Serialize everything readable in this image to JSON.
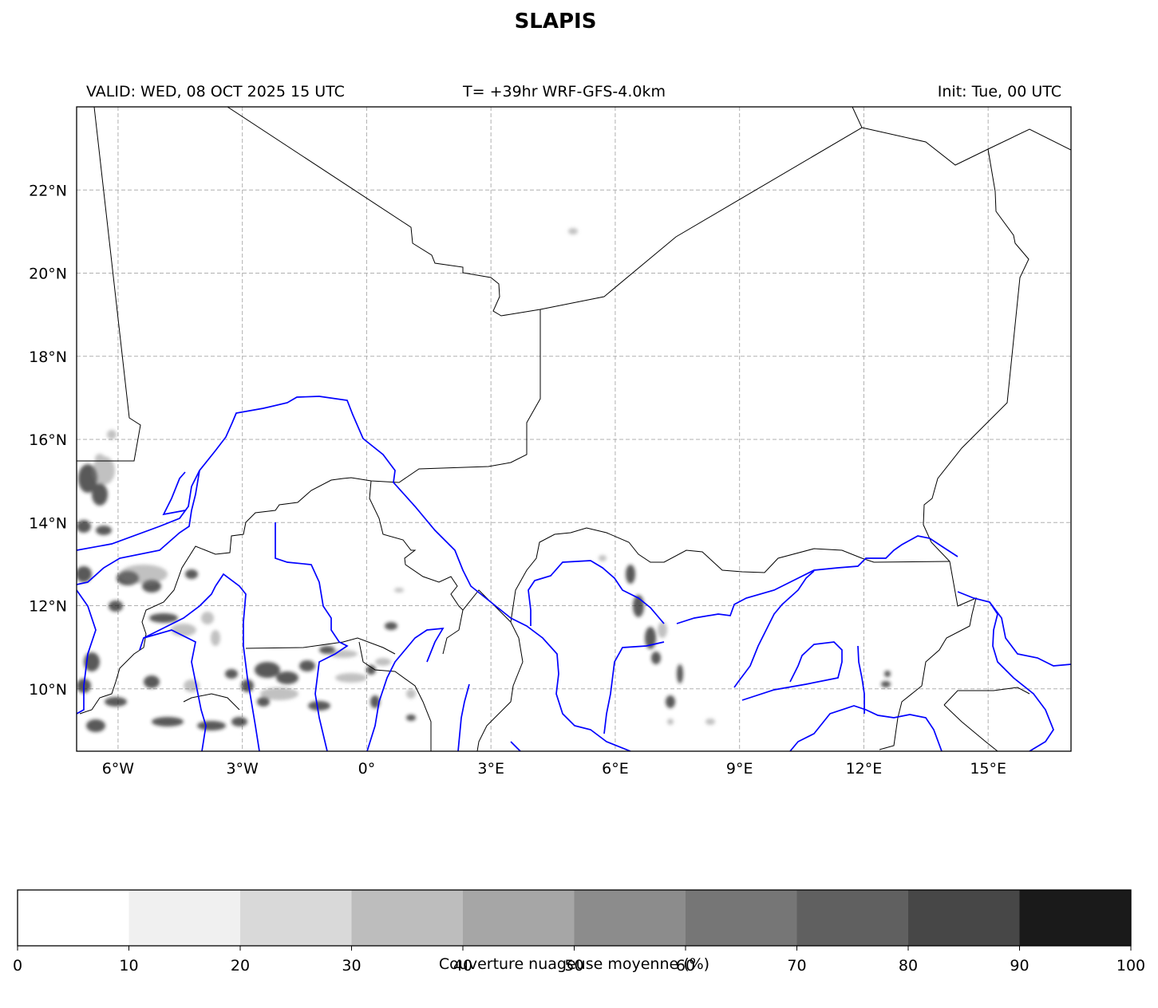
{
  "title": "SLAPIS",
  "header": {
    "valid": "VALID: WED, 08 OCT 2025 15 UTC",
    "run": "T= +39hr WRF-GFS-4.0km",
    "init": "Init: Tue, 00 UTC"
  },
  "map": {
    "lat_range": [
      8.5,
      24.0
    ],
    "lon_range": [
      -7.0,
      17.0
    ],
    "lat_ticks": [
      "22°N",
      "20°N",
      "18°N",
      "16°N",
      "14°N",
      "12°N",
      "10°N"
    ],
    "lat_values": [
      22,
      20,
      18,
      16,
      14,
      12,
      10
    ],
    "lon_ticks": [
      "6°W",
      "3°W",
      "0°",
      "3°E",
      "6°E",
      "9°E",
      "12°E",
      "15°E"
    ],
    "lon_values": [
      -6,
      -3,
      0,
      3,
      6,
      9,
      12,
      15
    ],
    "gridlines": true,
    "colors": {
      "rivers": "#0000ff",
      "borders": "#000000",
      "grid": "#b0b0b0"
    }
  },
  "colorbar": {
    "label": "Couverture nuageuse moyenne (%)",
    "ticks": [
      "0",
      "10",
      "20",
      "30",
      "40",
      "50",
      "60",
      "70",
      "80",
      "90",
      "100"
    ],
    "colors": [
      "#ffffff",
      "#f0f0f0",
      "#d9d9d9",
      "#bdbdbd",
      "#a6a6a6",
      "#8c8c8c",
      "#767676",
      "#606060",
      "#474747",
      "#1a1a1a"
    ]
  }
}
